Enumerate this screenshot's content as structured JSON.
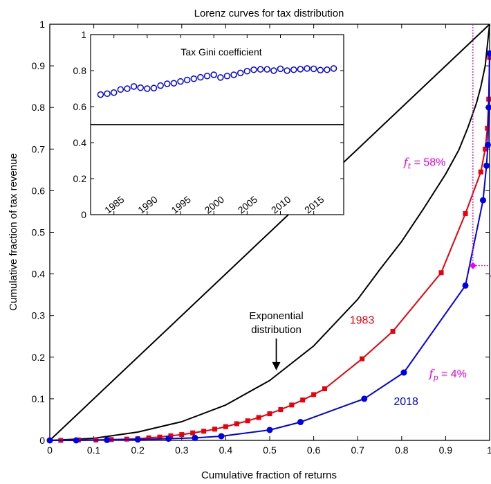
{
  "chart_data": [
    {
      "type": "line",
      "title": "Lorenz curves for tax distribution",
      "xlabel": "Cumulative fraction of returns",
      "ylabel": "Cumulative fraction of tax revenue",
      "xlim": [
        0,
        1
      ],
      "ylim": [
        0,
        1
      ],
      "xticks": [
        "0",
        "0.1",
        "0.2",
        "0.3",
        "0.4",
        "0.5",
        "0.6",
        "0.7",
        "0.8",
        "0.9",
        "1"
      ],
      "yticks": [
        "0",
        "0.1",
        "0.2",
        "0.3",
        "0.4",
        "0.5",
        "0.6",
        "0.7",
        "0.8",
        "0.9",
        "1"
      ],
      "grid": false,
      "series": [
        {
          "name": "",
          "color": "#000000",
          "marker": "none",
          "x": [
            0,
            1
          ],
          "y": [
            0,
            1
          ]
        },
        {
          "name": "",
          "color": "#000000",
          "marker": "none",
          "x": [
            0,
            0.1,
            0.2,
            0.3,
            0.4,
            0.5,
            0.6,
            0.7,
            0.75,
            0.8,
            0.85,
            0.9,
            0.93,
            0.95,
            0.97,
            0.98,
            0.99,
            1.0
          ],
          "y": [
            0,
            0.005,
            0.02,
            0.045,
            0.085,
            0.144,
            0.227,
            0.339,
            0.41,
            0.478,
            0.557,
            0.64,
            0.698,
            0.75,
            0.81,
            0.85,
            0.9,
            1.0
          ]
        },
        {
          "name": "1983",
          "color": "#e8000b",
          "marker": "square",
          "x": [
            0.0,
            0.025,
            0.065,
            0.105,
            0.14,
            0.175,
            0.2,
            0.225,
            0.25,
            0.275,
            0.3,
            0.325,
            0.35,
            0.375,
            0.4,
            0.425,
            0.45,
            0.475,
            0.5,
            0.525,
            0.55,
            0.575,
            0.6,
            0.625,
            0.71,
            0.78,
            0.89,
            0.945,
            0.98,
            0.99,
            0.995,
            0.998,
            1.0
          ],
          "y": [
            0.0,
            0.0,
            0.001,
            0.001,
            0.002,
            0.003,
            0.004,
            0.006,
            0.008,
            0.011,
            0.014,
            0.018,
            0.022,
            0.027,
            0.033,
            0.04,
            0.047,
            0.055,
            0.064,
            0.074,
            0.085,
            0.097,
            0.11,
            0.124,
            0.196,
            0.262,
            0.403,
            0.545,
            0.645,
            0.7,
            0.75,
            0.82,
            0.92
          ]
        },
        {
          "name": "2018",
          "color": "#0000e6",
          "marker": "circle",
          "x": [
            0.0,
            0.06,
            0.13,
            0.2,
            0.27,
            0.33,
            0.39,
            0.5,
            0.57,
            0.715,
            0.805,
            0.945,
            0.985,
            0.993,
            0.996,
            0.998,
            1.0
          ],
          "y": [
            0.0,
            0.0,
            0.001,
            0.002,
            0.004,
            0.006,
            0.01,
            0.025,
            0.044,
            0.1,
            0.163,
            0.372,
            0.577,
            0.66,
            0.71,
            0.8,
            0.93
          ]
        }
      ],
      "annotations": {
        "exponential": {
          "line1": "Exponential",
          "line2": "distribution",
          "arrow_from": [
            0.515,
            0.245
          ],
          "arrow_to": [
            0.515,
            0.17
          ]
        },
        "label_1983": {
          "text": "1983",
          "x": 0.71,
          "y": 0.28
        },
        "label_2018": {
          "text": "2018",
          "x": 0.81,
          "y": 0.085
        },
        "ft": {
          "symbol": "f",
          "sub": "t",
          "rest": " = 58%",
          "x": 0.9,
          "y": 0.66
        },
        "fp": {
          "symbol": "f",
          "sub": "p",
          "rest": " = 4%",
          "x": 0.885,
          "y": 0.16
        },
        "marker_point": {
          "x": 0.962,
          "y": 0.42
        },
        "guide_color": "#ee00ee"
      }
    },
    {
      "type": "scatter",
      "title": "Tax Gini coefficient",
      "xlabel": "",
      "ylabel": "",
      "xlim": [
        1981.5,
        2019.5
      ],
      "ylim": [
        0,
        1
      ],
      "xticks": [
        "1985",
        "1990",
        "1995",
        "2000",
        "2005",
        "2010",
        "2015"
      ],
      "yticks": [
        "0",
        "0.2",
        "0.4",
        "0.6",
        "0.8",
        "1"
      ],
      "grid": false,
      "reference_line": 0.5,
      "reference_line_note": "",
      "series": [
        {
          "name": "",
          "color": "#0000e6",
          "marker": "circle-open",
          "x": [
            1983,
            1984,
            1985,
            1986,
            1987,
            1988,
            1989,
            1990,
            1991,
            1992,
            1993,
            1994,
            1995,
            1996,
            1997,
            1998,
            1999,
            2000,
            2001,
            2002,
            2003,
            2004,
            2005,
            2006,
            2007,
            2008,
            2009,
            2010,
            2011,
            2012,
            2013,
            2014,
            2015,
            2016,
            2017,
            2018
          ],
          "y": [
            0.667,
            0.672,
            0.678,
            0.695,
            0.7,
            0.712,
            0.705,
            0.7,
            0.703,
            0.717,
            0.727,
            0.73,
            0.74,
            0.748,
            0.755,
            0.763,
            0.77,
            0.777,
            0.762,
            0.77,
            0.777,
            0.787,
            0.797,
            0.805,
            0.807,
            0.807,
            0.8,
            0.81,
            0.8,
            0.805,
            0.808,
            0.812,
            0.81,
            0.803,
            0.805,
            0.812
          ]
        }
      ]
    }
  ]
}
